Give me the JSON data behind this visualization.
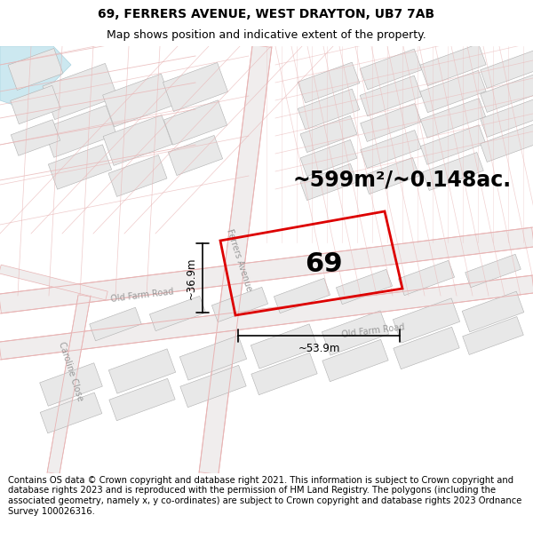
{
  "title_line1": "69, FERRERS AVENUE, WEST DRAYTON, UB7 7AB",
  "title_line2": "Map shows position and indicative extent of the property.",
  "area_text": "~599m²/~0.148ac.",
  "label_69": "69",
  "dim_height": "~36.9m",
  "dim_width": "~53.9m",
  "footer_text": "Contains OS data © Crown copyright and database right 2021. This information is subject to Crown copyright and database rights 2023 and is reproduced with the permission of HM Land Registry. The polygons (including the associated geometry, namely x, y co-ordinates) are subject to Crown copyright and database rights 2023 Ordnance Survey 100026316.",
  "map_bg": "#ffffff",
  "road_surface": "#f0eded",
  "road_outline": "#e8b4b4",
  "building_fill": "#e8e8e8",
  "building_stroke": "#b0b0b0",
  "plot_line_color": "#dd0000",
  "water_color": "#cce8f0",
  "title_fontsize": 10,
  "subtitle_fontsize": 9,
  "area_fontsize": 17,
  "label_fontsize": 22,
  "footer_fontsize": 7.2,
  "road_label_color": "#999999",
  "road_label_size": 7
}
